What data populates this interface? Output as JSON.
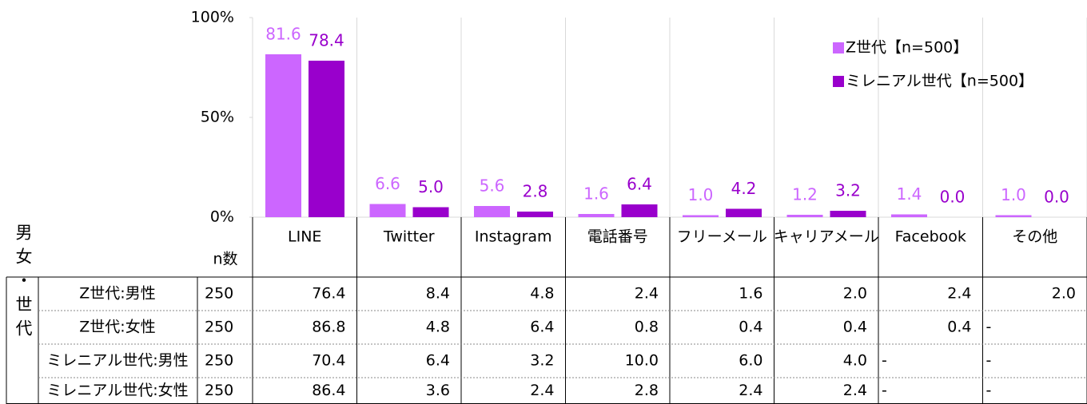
{
  "chart_data": {
    "type": "bar",
    "categories": [
      "LINE",
      "Twitter",
      "Instagram",
      "電話番号",
      "フリーメール",
      "キャリアメール",
      "Facebook",
      "その他"
    ],
    "series": [
      {
        "name": "Z世代【n=500】",
        "color": "#cc66ff",
        "values": [
          81.6,
          6.6,
          5.6,
          1.6,
          1.0,
          1.2,
          1.4,
          1.0
        ],
        "value_labels": [
          "81.6",
          "6.6",
          "5.6",
          "1.6",
          "1.0",
          "1.2",
          "1.4",
          "1.0"
        ]
      },
      {
        "name": "ミレニアル世代【n=500】",
        "color": "#9900cc",
        "values": [
          78.4,
          5.0,
          2.8,
          6.4,
          4.2,
          3.2,
          0.0,
          0.0
        ],
        "value_labels": [
          "78.4",
          "5.0",
          "2.8",
          "6.4",
          "4.2",
          "3.2",
          "0.0",
          "0.0"
        ]
      }
    ],
    "ylim": [
      0,
      100
    ],
    "yticks": [
      {
        "value": 0,
        "label": "0%"
      },
      {
        "value": 50,
        "label": "50%"
      },
      {
        "value": 100,
        "label": "100%"
      }
    ],
    "legend": "upper right"
  },
  "table": {
    "n_header": "n数",
    "group_label": "男女・世代",
    "rows": [
      {
        "label": "Z世代:男性",
        "n": "250",
        "cells": [
          "76.4",
          "8.4",
          "4.8",
          "2.4",
          "1.6",
          "2.0",
          "2.4",
          "2.0"
        ]
      },
      {
        "label": "Z世代:女性",
        "n": "250",
        "cells": [
          "86.8",
          "4.8",
          "6.4",
          "0.8",
          "0.4",
          "0.4",
          "0.4",
          "-"
        ]
      },
      {
        "label": "ミレニアル世代:男性",
        "n": "250",
        "cells": [
          "70.4",
          "6.4",
          "3.2",
          "10.0",
          "6.0",
          "4.0",
          "-",
          "-"
        ]
      },
      {
        "label": "ミレニアル世代:女性",
        "n": "250",
        "cells": [
          "86.4",
          "3.6",
          "2.4",
          "2.8",
          "2.4",
          "2.4",
          "-",
          "-"
        ]
      }
    ]
  }
}
